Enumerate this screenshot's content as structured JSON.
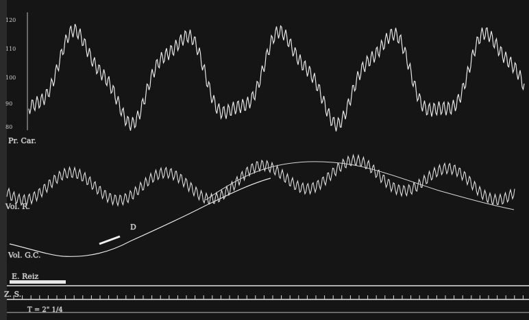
{
  "labels": {
    "top_trace": "Pr. Car.",
    "middle_trace": "Vol. R.",
    "lower_trace": "Vol. G.C.",
    "stimulus": "E. Reiz",
    "marker": "D",
    "time_axis": "Z. S.",
    "time_scale": "T = 2\" 1/4"
  },
  "scale": [
    "120",
    "110",
    "100",
    "90",
    "80"
  ],
  "colors": {
    "background": "#141414",
    "trace": "#e8e8e8"
  }
}
